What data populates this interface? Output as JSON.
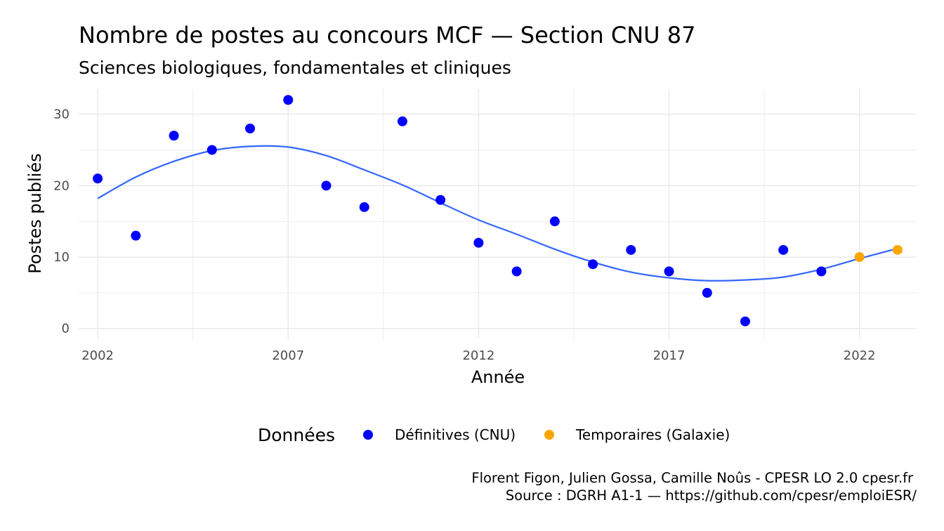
{
  "chart_data": {
    "type": "scatter",
    "title": "Nombre de postes au concours MCF  —  Section CNU 87",
    "subtitle": "Sciences biologiques, fondamentales et cliniques",
    "xlabel": "Année",
    "ylabel": "Postes publiés",
    "xlim": [
      2001.5,
      2023.5
    ],
    "ylim": [
      -1.5,
      33.5
    ],
    "x_ticks": [
      2002,
      2007,
      2012,
      2017,
      2022
    ],
    "y_ticks": [
      0,
      10,
      20,
      30
    ],
    "grid": true,
    "legend": {
      "title": "Données",
      "position": "bottom"
    },
    "series": [
      {
        "name": "Définitives (CNU)",
        "color": "#0000ff",
        "x": [
          2002,
          2003,
          2004,
          2005,
          2006,
          2007,
          2008,
          2009,
          2010,
          2011,
          2012,
          2013,
          2014,
          2015,
          2016,
          2017,
          2018,
          2019,
          2020,
          2021
        ],
        "y": [
          21,
          13,
          27,
          25,
          28,
          32,
          20,
          17,
          29,
          18,
          12,
          8,
          15,
          9,
          11,
          8,
          5,
          1,
          11,
          8
        ]
      },
      {
        "name": "Temporaires (Galaxie)",
        "color": "#ffa500",
        "x": [
          2022,
          2023
        ],
        "y": [
          10,
          11
        ]
      }
    ],
    "trend": {
      "color": "#3366ff",
      "x": [
        2002,
        2003,
        2004,
        2005,
        2006,
        2007,
        2008,
        2009,
        2010,
        2011,
        2012,
        2013,
        2014,
        2015,
        2016,
        2017,
        2018,
        2019,
        2020,
        2021,
        2022,
        2023
      ],
      "y": [
        18.2,
        21.2,
        23.4,
        24.9,
        25.5,
        25.4,
        24.2,
        22.2,
        20.1,
        17.6,
        15.2,
        13.2,
        11.1,
        9.3,
        7.9,
        7.1,
        6.7,
        6.8,
        7.2,
        8.3,
        9.8,
        11.2
      ]
    },
    "caption": [
      "Florent Figon, Julien Gossa, Camille Noûs - CPESR LO 2.0 cpesr.fr",
      "Source : DGRH A1-1 — https://github.com/cpesr/emploiESR/"
    ]
  }
}
